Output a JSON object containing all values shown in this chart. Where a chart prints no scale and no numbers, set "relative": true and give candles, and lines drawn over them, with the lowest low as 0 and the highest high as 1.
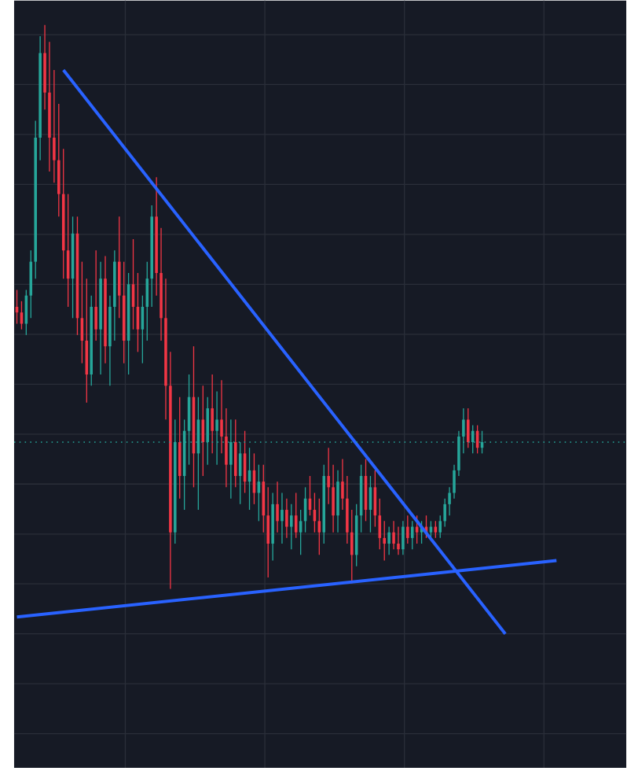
{
  "chart_data": {
    "type": "candlestick",
    "relative": true,
    "grid": true,
    "tick_labels": false,
    "categories": [
      null,
      null,
      null,
      null,
      null,
      null,
      null,
      null,
      null,
      null,
      null,
      null,
      null,
      null,
      null,
      null,
      null,
      null,
      null,
      null,
      null,
      null,
      null,
      null,
      null,
      null,
      null,
      null,
      null,
      null,
      null,
      null,
      null,
      null,
      null,
      null,
      null,
      null,
      null,
      null,
      null,
      null,
      null,
      null,
      null,
      null,
      null,
      null,
      null,
      null,
      null,
      null,
      null,
      null,
      null,
      null,
      null,
      null,
      null,
      null,
      null,
      null,
      null,
      null,
      null,
      null,
      null,
      null,
      null,
      null,
      null,
      null,
      null,
      null,
      null,
      null,
      null,
      null,
      null,
      null,
      null,
      null,
      null,
      null,
      null,
      null,
      null,
      null,
      null,
      null,
      null,
      null,
      null,
      null,
      null,
      null,
      null,
      null,
      null,
      null,
      null,
      null,
      null,
      null,
      null,
      null,
      null,
      null,
      null,
      null,
      null,
      null,
      null,
      null,
      null,
      null,
      null
    ],
    "ohlc": [
      [
        0.5,
        0.53,
        0.47,
        0.49
      ],
      [
        0.49,
        0.51,
        0.46,
        0.47
      ],
      [
        0.47,
        0.53,
        0.45,
        0.52
      ],
      [
        0.52,
        0.6,
        0.48,
        0.58
      ],
      [
        0.58,
        0.83,
        0.55,
        0.8
      ],
      [
        0.8,
        0.98,
        0.76,
        0.95
      ],
      [
        0.95,
        1.0,
        0.85,
        0.88
      ],
      [
        0.88,
        0.97,
        0.74,
        0.8
      ],
      [
        0.8,
        0.92,
        0.72,
        0.76
      ],
      [
        0.76,
        0.86,
        0.66,
        0.7
      ],
      [
        0.7,
        0.78,
        0.55,
        0.6
      ],
      [
        0.6,
        0.7,
        0.5,
        0.55
      ],
      [
        0.55,
        0.66,
        0.48,
        0.63
      ],
      [
        0.63,
        0.66,
        0.45,
        0.48
      ],
      [
        0.48,
        0.58,
        0.4,
        0.44
      ],
      [
        0.44,
        0.55,
        0.33,
        0.38
      ],
      [
        0.38,
        0.52,
        0.36,
        0.5
      ],
      [
        0.5,
        0.6,
        0.44,
        0.46
      ],
      [
        0.46,
        0.58,
        0.38,
        0.55
      ],
      [
        0.55,
        0.59,
        0.4,
        0.43
      ],
      [
        0.43,
        0.52,
        0.36,
        0.5
      ],
      [
        0.5,
        0.6,
        0.44,
        0.58
      ],
      [
        0.58,
        0.66,
        0.48,
        0.52
      ],
      [
        0.52,
        0.58,
        0.4,
        0.44
      ],
      [
        0.44,
        0.56,
        0.38,
        0.54
      ],
      [
        0.54,
        0.62,
        0.46,
        0.5
      ],
      [
        0.5,
        0.56,
        0.42,
        0.46
      ],
      [
        0.46,
        0.52,
        0.4,
        0.5
      ],
      [
        0.5,
        0.58,
        0.44,
        0.55
      ],
      [
        0.55,
        0.68,
        0.5,
        0.66
      ],
      [
        0.66,
        0.73,
        0.52,
        0.56
      ],
      [
        0.56,
        0.64,
        0.44,
        0.48
      ],
      [
        0.48,
        0.55,
        0.3,
        0.36
      ],
      [
        0.36,
        0.42,
        0.0,
        0.1
      ],
      [
        0.1,
        0.3,
        0.08,
        0.26
      ],
      [
        0.26,
        0.34,
        0.16,
        0.2
      ],
      [
        0.2,
        0.3,
        0.14,
        0.28
      ],
      [
        0.28,
        0.38,
        0.22,
        0.34
      ],
      [
        0.34,
        0.43,
        0.18,
        0.24
      ],
      [
        0.24,
        0.34,
        0.14,
        0.3
      ],
      [
        0.3,
        0.36,
        0.2,
        0.26
      ],
      [
        0.26,
        0.34,
        0.22,
        0.32
      ],
      [
        0.32,
        0.38,
        0.24,
        0.28
      ],
      [
        0.28,
        0.35,
        0.22,
        0.3
      ],
      [
        0.3,
        0.37,
        0.24,
        0.27
      ],
      [
        0.27,
        0.32,
        0.18,
        0.22
      ],
      [
        0.22,
        0.3,
        0.16,
        0.26
      ],
      [
        0.26,
        0.3,
        0.18,
        0.2
      ],
      [
        0.2,
        0.26,
        0.15,
        0.24
      ],
      [
        0.24,
        0.28,
        0.17,
        0.19
      ],
      [
        0.19,
        0.25,
        0.14,
        0.21
      ],
      [
        0.21,
        0.24,
        0.15,
        0.17
      ],
      [
        0.17,
        0.22,
        0.12,
        0.19
      ],
      [
        0.19,
        0.22,
        0.1,
        0.13
      ],
      [
        0.13,
        0.18,
        0.02,
        0.08
      ],
      [
        0.08,
        0.17,
        0.05,
        0.15
      ],
      [
        0.15,
        0.19,
        0.1,
        0.12
      ],
      [
        0.12,
        0.17,
        0.08,
        0.14
      ],
      [
        0.14,
        0.16,
        0.09,
        0.11
      ],
      [
        0.11,
        0.15,
        0.07,
        0.13
      ],
      [
        0.13,
        0.17,
        0.09,
        0.1
      ],
      [
        0.1,
        0.14,
        0.06,
        0.12
      ],
      [
        0.12,
        0.18,
        0.1,
        0.16
      ],
      [
        0.16,
        0.2,
        0.13,
        0.14
      ],
      [
        0.14,
        0.17,
        0.1,
        0.12
      ],
      [
        0.12,
        0.16,
        0.06,
        0.1
      ],
      [
        0.1,
        0.22,
        0.08,
        0.2
      ],
      [
        0.2,
        0.25,
        0.15,
        0.18
      ],
      [
        0.18,
        0.22,
        0.1,
        0.13
      ],
      [
        0.13,
        0.21,
        0.1,
        0.19
      ],
      [
        0.19,
        0.23,
        0.14,
        0.16
      ],
      [
        0.16,
        0.2,
        0.08,
        0.1
      ],
      [
        0.1,
        0.14,
        0.01,
        0.06
      ],
      [
        0.06,
        0.15,
        0.04,
        0.13
      ],
      [
        0.13,
        0.22,
        0.1,
        0.2
      ],
      [
        0.2,
        0.23,
        0.12,
        0.14
      ],
      [
        0.14,
        0.2,
        0.1,
        0.18
      ],
      [
        0.18,
        0.21,
        0.11,
        0.13
      ],
      [
        0.13,
        0.16,
        0.07,
        0.09
      ],
      [
        0.09,
        0.12,
        0.05,
        0.08
      ],
      [
        0.08,
        0.11,
        0.06,
        0.1
      ],
      [
        0.1,
        0.12,
        0.07,
        0.08
      ],
      [
        0.08,
        0.11,
        0.06,
        0.07
      ],
      [
        0.07,
        0.12,
        0.06,
        0.11
      ],
      [
        0.11,
        0.13,
        0.08,
        0.09
      ],
      [
        0.09,
        0.12,
        0.07,
        0.11
      ],
      [
        0.11,
        0.13,
        0.08,
        0.1
      ],
      [
        0.1,
        0.12,
        0.08,
        0.11
      ],
      [
        0.11,
        0.13,
        0.09,
        0.1
      ],
      [
        0.1,
        0.12,
        0.09,
        0.11
      ],
      [
        0.11,
        0.12,
        0.09,
        0.1
      ],
      [
        0.1,
        0.13,
        0.09,
        0.12
      ],
      [
        0.12,
        0.16,
        0.11,
        0.15
      ],
      [
        0.15,
        0.18,
        0.13,
        0.17
      ],
      [
        0.17,
        0.22,
        0.16,
        0.21
      ],
      [
        0.21,
        0.28,
        0.2,
        0.27
      ],
      [
        0.27,
        0.32,
        0.24,
        0.3
      ],
      [
        0.3,
        0.32,
        0.25,
        0.26
      ],
      [
        0.26,
        0.29,
        0.24,
        0.28
      ],
      [
        0.28,
        0.29,
        0.24,
        0.25
      ],
      [
        0.25,
        0.28,
        0.24,
        0.26
      ],
      null,
      null,
      null,
      null,
      null,
      null,
      null,
      null,
      null,
      null,
      null,
      null,
      null,
      null,
      null,
      null
    ],
    "colors": [
      "#f23645",
      "#f23645",
      "#26a69a",
      "#26a69a",
      "#26a69a",
      "#26a69a",
      "#f23645",
      "#f23645",
      "#f23645",
      "#f23645",
      "#f23645",
      "#f23645",
      "#26a69a",
      "#f23645",
      "#f23645",
      "#f23645",
      "#26a69a",
      "#f23645",
      "#26a69a",
      "#f23645",
      "#26a69a",
      "#26a69a",
      "#f23645",
      "#f23645",
      "#26a69a",
      "#f23645",
      "#f23645",
      "#26a69a",
      "#26a69a",
      "#26a69a",
      "#f23645",
      "#f23645",
      "#f23645",
      "#f23645",
      "#26a69a",
      "#f23645",
      "#26a69a",
      "#26a69a",
      "#f23645",
      "#26a69a",
      "#f23645",
      "#26a69a",
      "#f23645",
      "#26a69a",
      "#f23645",
      "#f23645",
      "#26a69a",
      "#f23645",
      "#26a69a",
      "#f23645",
      "#26a69a",
      "#f23645",
      "#26a69a",
      "#f23645",
      "#f23645",
      "#26a69a",
      "#f23645",
      "#26a69a",
      "#f23645",
      "#26a69a",
      "#f23645",
      "#26a69a",
      "#26a69a",
      "#f23645",
      "#f23645",
      "#f23645",
      "#26a69a",
      "#f23645",
      "#f23645",
      "#26a69a",
      "#f23645",
      "#f23645",
      "#f23645",
      "#26a69a",
      "#26a69a",
      "#f23645",
      "#26a69a",
      "#f23645",
      "#f23645",
      "#f23645",
      "#26a69a",
      "#f23645",
      "#f23645",
      "#26a69a",
      "#f23645",
      "#26a69a",
      "#f23645",
      "#26a69a",
      "#f23645",
      "#26a69a",
      "#f23645",
      "#26a69a",
      "#26a69a",
      "#26a69a",
      "#26a69a",
      "#26a69a",
      "#26a69a",
      "#f23645",
      "#26a69a",
      "#f23645",
      "#26a69a",
      null,
      null,
      null,
      null,
      null,
      null,
      null,
      null,
      null,
      null,
      null,
      null,
      null,
      null,
      null,
      null
    ],
    "series": [
      {
        "type": "line",
        "color": "#2962ff",
        "values": [
          null,
          null,
          null,
          null,
          null,
          null,
          null,
          null,
          null,
          null,
          0.92,
          null,
          null,
          null,
          null,
          null,
          null,
          null,
          null,
          null,
          null,
          null,
          null,
          null,
          null,
          null,
          null,
          null,
          null,
          null,
          null,
          null,
          null,
          null,
          null,
          null,
          null,
          null,
          null,
          null,
          null,
          null,
          null,
          null,
          null,
          null,
          null,
          null,
          null,
          null,
          null,
          null,
          null,
          null,
          null,
          null,
          null,
          null,
          null,
          null,
          null,
          null,
          null,
          null,
          null,
          null,
          null,
          null,
          null,
          null,
          null,
          null,
          null,
          null,
          null,
          null,
          null,
          null,
          null,
          null,
          null,
          null,
          null,
          null,
          null,
          null,
          null,
          null,
          null,
          null,
          null,
          null,
          null,
          null,
          null,
          null,
          null,
          null,
          null,
          null,
          null,
          null,
          null,
          null,
          null,
          -0.08,
          null,
          null,
          null,
          null,
          null,
          null,
          null,
          null,
          null,
          null,
          null
        ]
      },
      {
        "type": "line",
        "color": "#2962ff",
        "values": [
          -0.05,
          null,
          null,
          null,
          null,
          null,
          null,
          null,
          null,
          null,
          null,
          null,
          null,
          null,
          null,
          null,
          null,
          null,
          null,
          null,
          null,
          null,
          null,
          null,
          null,
          null,
          null,
          null,
          null,
          null,
          null,
          null,
          null,
          null,
          null,
          null,
          null,
          null,
          null,
          null,
          null,
          null,
          null,
          null,
          null,
          null,
          null,
          null,
          null,
          null,
          null,
          null,
          null,
          null,
          null,
          null,
          null,
          null,
          null,
          null,
          null,
          null,
          null,
          null,
          null,
          null,
          null,
          null,
          null,
          null,
          null,
          null,
          null,
          null,
          null,
          null,
          null,
          null,
          null,
          null,
          null,
          null,
          null,
          null,
          null,
          null,
          null,
          null,
          null,
          null,
          null,
          null,
          null,
          null,
          null,
          null,
          null,
          null,
          null,
          null,
          null,
          null,
          null,
          null,
          null,
          null,
          null,
          null,
          null,
          null,
          null,
          null,
          null,
          null,
          null,
          null,
          0.05
        ]
      }
    ],
    "ref_lines": [
      {
        "axis": "y",
        "value": 0.26,
        "color": "#26a69a",
        "line_style": "dotted"
      }
    ]
  }
}
